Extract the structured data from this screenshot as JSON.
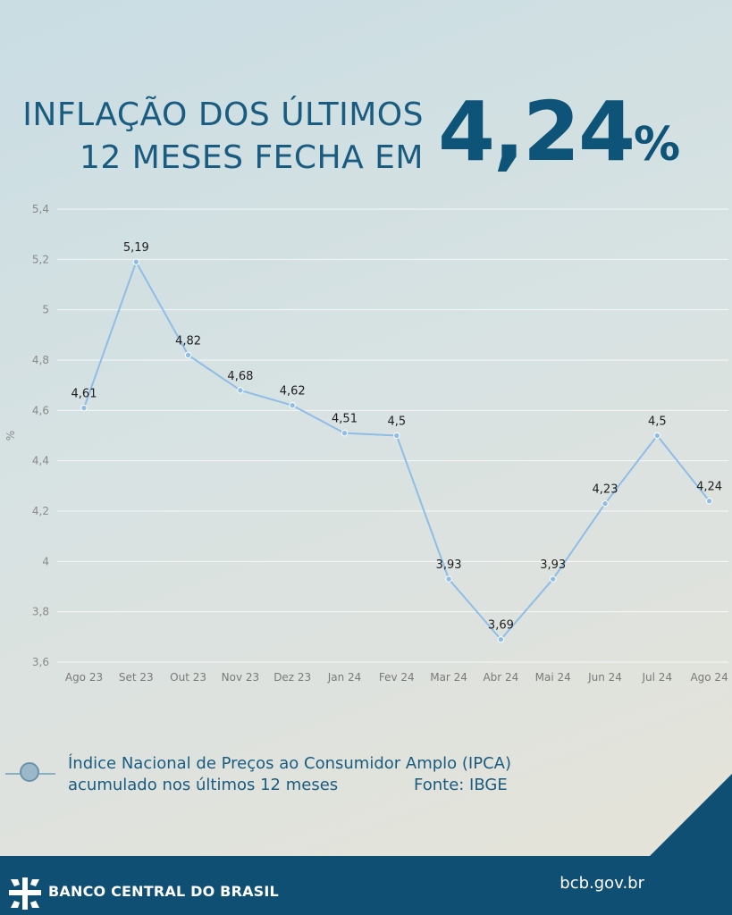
{
  "headline": {
    "line1": "INFLAÇÃO DOS ÚLTIMOS",
    "line2": "12 MESES  FECHA EM",
    "value": "4,24",
    "unit": "%"
  },
  "chart_data": {
    "type": "line",
    "ylabel": "%",
    "ylim": [
      3.6,
      5.4
    ],
    "yticks": [
      "3,6",
      "3,8",
      "4",
      "4,2",
      "4,4",
      "4,6",
      "4,8",
      "5",
      "5,2",
      "5,4"
    ],
    "ytick_values": [
      3.6,
      3.8,
      4.0,
      4.2,
      4.4,
      4.6,
      4.8,
      5.0,
      5.2,
      5.4
    ],
    "grid": true,
    "categories": [
      "Ago 23",
      "Set 23",
      "Out 23",
      "Nov 23",
      "Dez 23",
      "Jan 24",
      "Fev 24",
      "Mar 24",
      "Abr 24",
      "Mai 24",
      "Jun 24",
      "Jul 24",
      "Ago 24"
    ],
    "series": [
      {
        "name": "Índice Nacional de Preços ao Consumidor Amplo (IPCA) acumulado nos últimos 12 meses",
        "values": [
          4.61,
          5.19,
          4.82,
          4.68,
          4.62,
          4.51,
          4.5,
          3.93,
          3.69,
          3.93,
          4.23,
          4.5,
          4.24
        ],
        "labels": [
          "4,61",
          "5,19",
          "4,82",
          "4,68",
          "4,62",
          "4,51",
          "4,5",
          "3,93",
          "3,69",
          "3,93",
          "4,23",
          "4,5",
          "4,24"
        ],
        "color": "#8fbde6"
      }
    ]
  },
  "legend": {
    "line1": "Índice Nacional de Preços ao Consumidor Amplo (IPCA)",
    "line2": "acumulado nos últimos 12 meses",
    "source": "Fonte: IBGE"
  },
  "footer": {
    "brand": "BANCO CENTRAL DO BRASIL",
    "site": "bcb.gov.br",
    "color": "#0e4f73"
  }
}
